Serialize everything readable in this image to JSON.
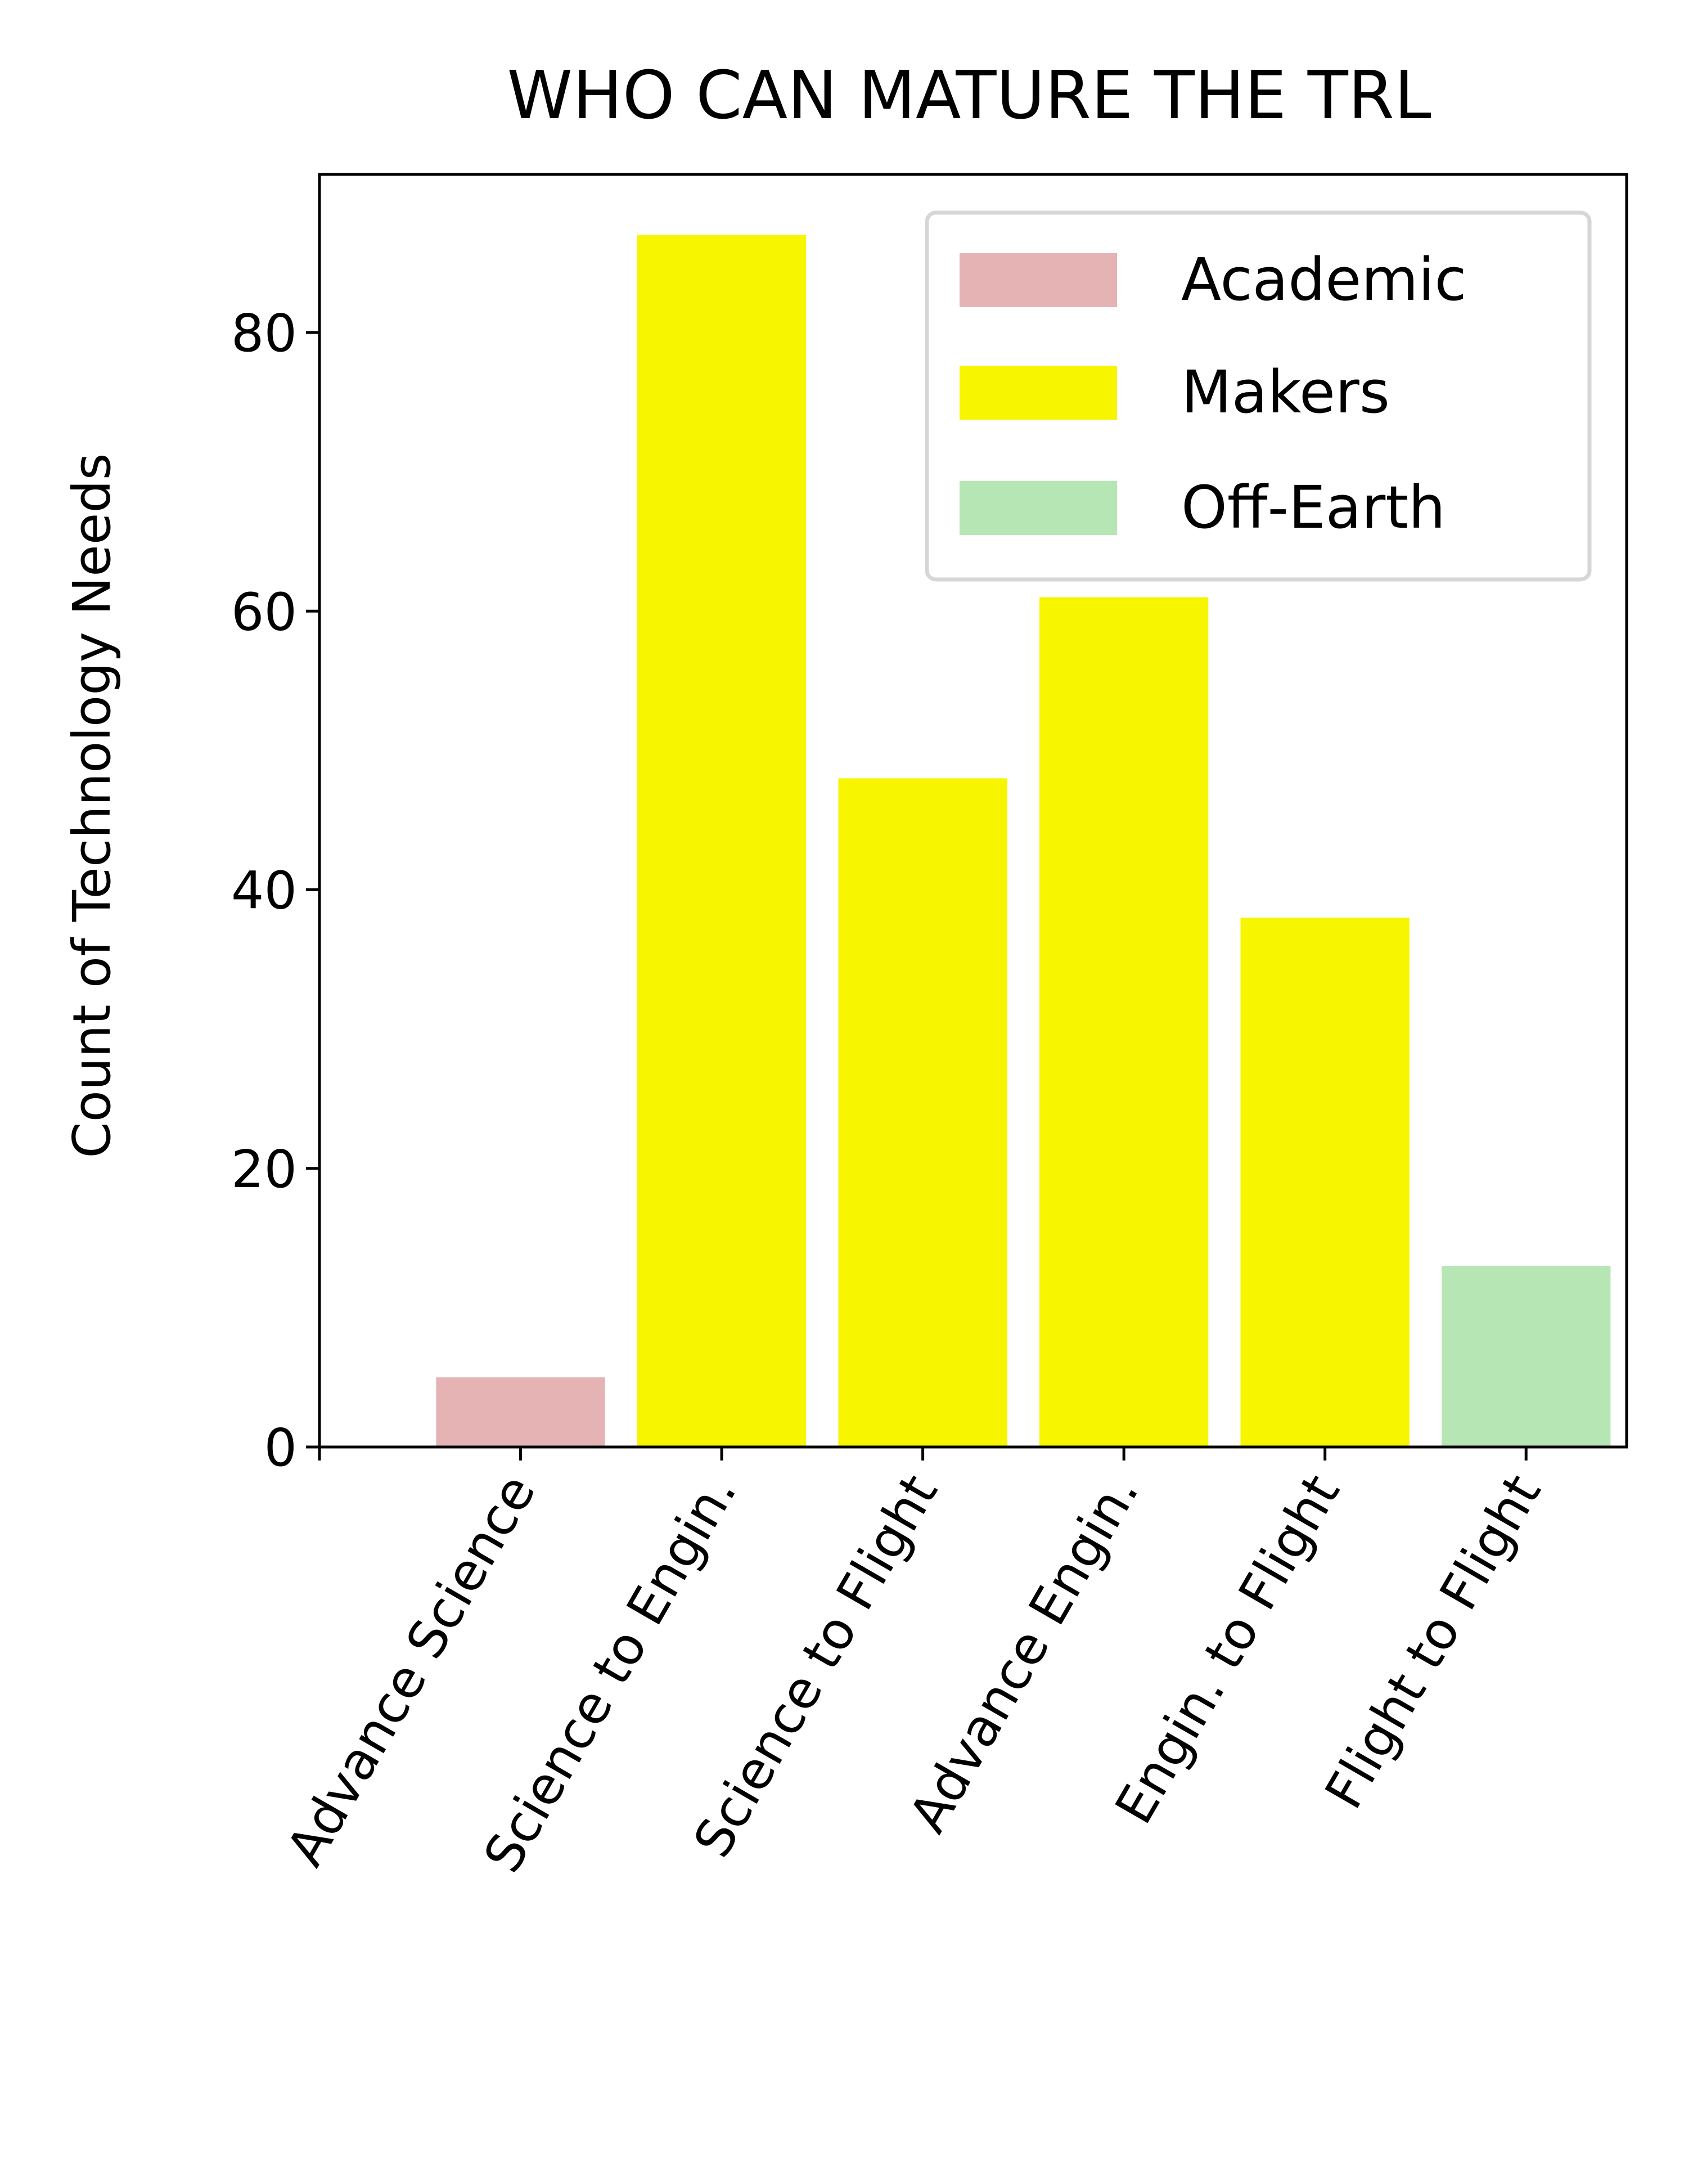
{
  "chart_data": {
    "type": "bar",
    "title": "WHO CAN MATURE THE TRL",
    "xlabel": "",
    "ylabel": "Count of Technology Needs",
    "categories": [
      "Advance Science",
      "Science to Engin.",
      "Science to Flight",
      "Advance Engin.",
      "Engin. to Flight",
      "Flight to Flight"
    ],
    "values": [
      5,
      87,
      48,
      61,
      38,
      13
    ],
    "groups": [
      "Academic",
      "Makers",
      "Makers",
      "Makers",
      "Makers",
      "Off-Earth"
    ],
    "legend": [
      {
        "label": "Academic",
        "color": "#e5b3b3"
      },
      {
        "label": "Makers",
        "color": "#f8f500"
      },
      {
        "label": "Off-Earth",
        "color": "#b5e6b4"
      }
    ],
    "yticks": [
      0,
      20,
      40,
      60,
      80
    ],
    "ylim": [
      0,
      91.35
    ],
    "grid": false,
    "legend_position": "top-right"
  }
}
